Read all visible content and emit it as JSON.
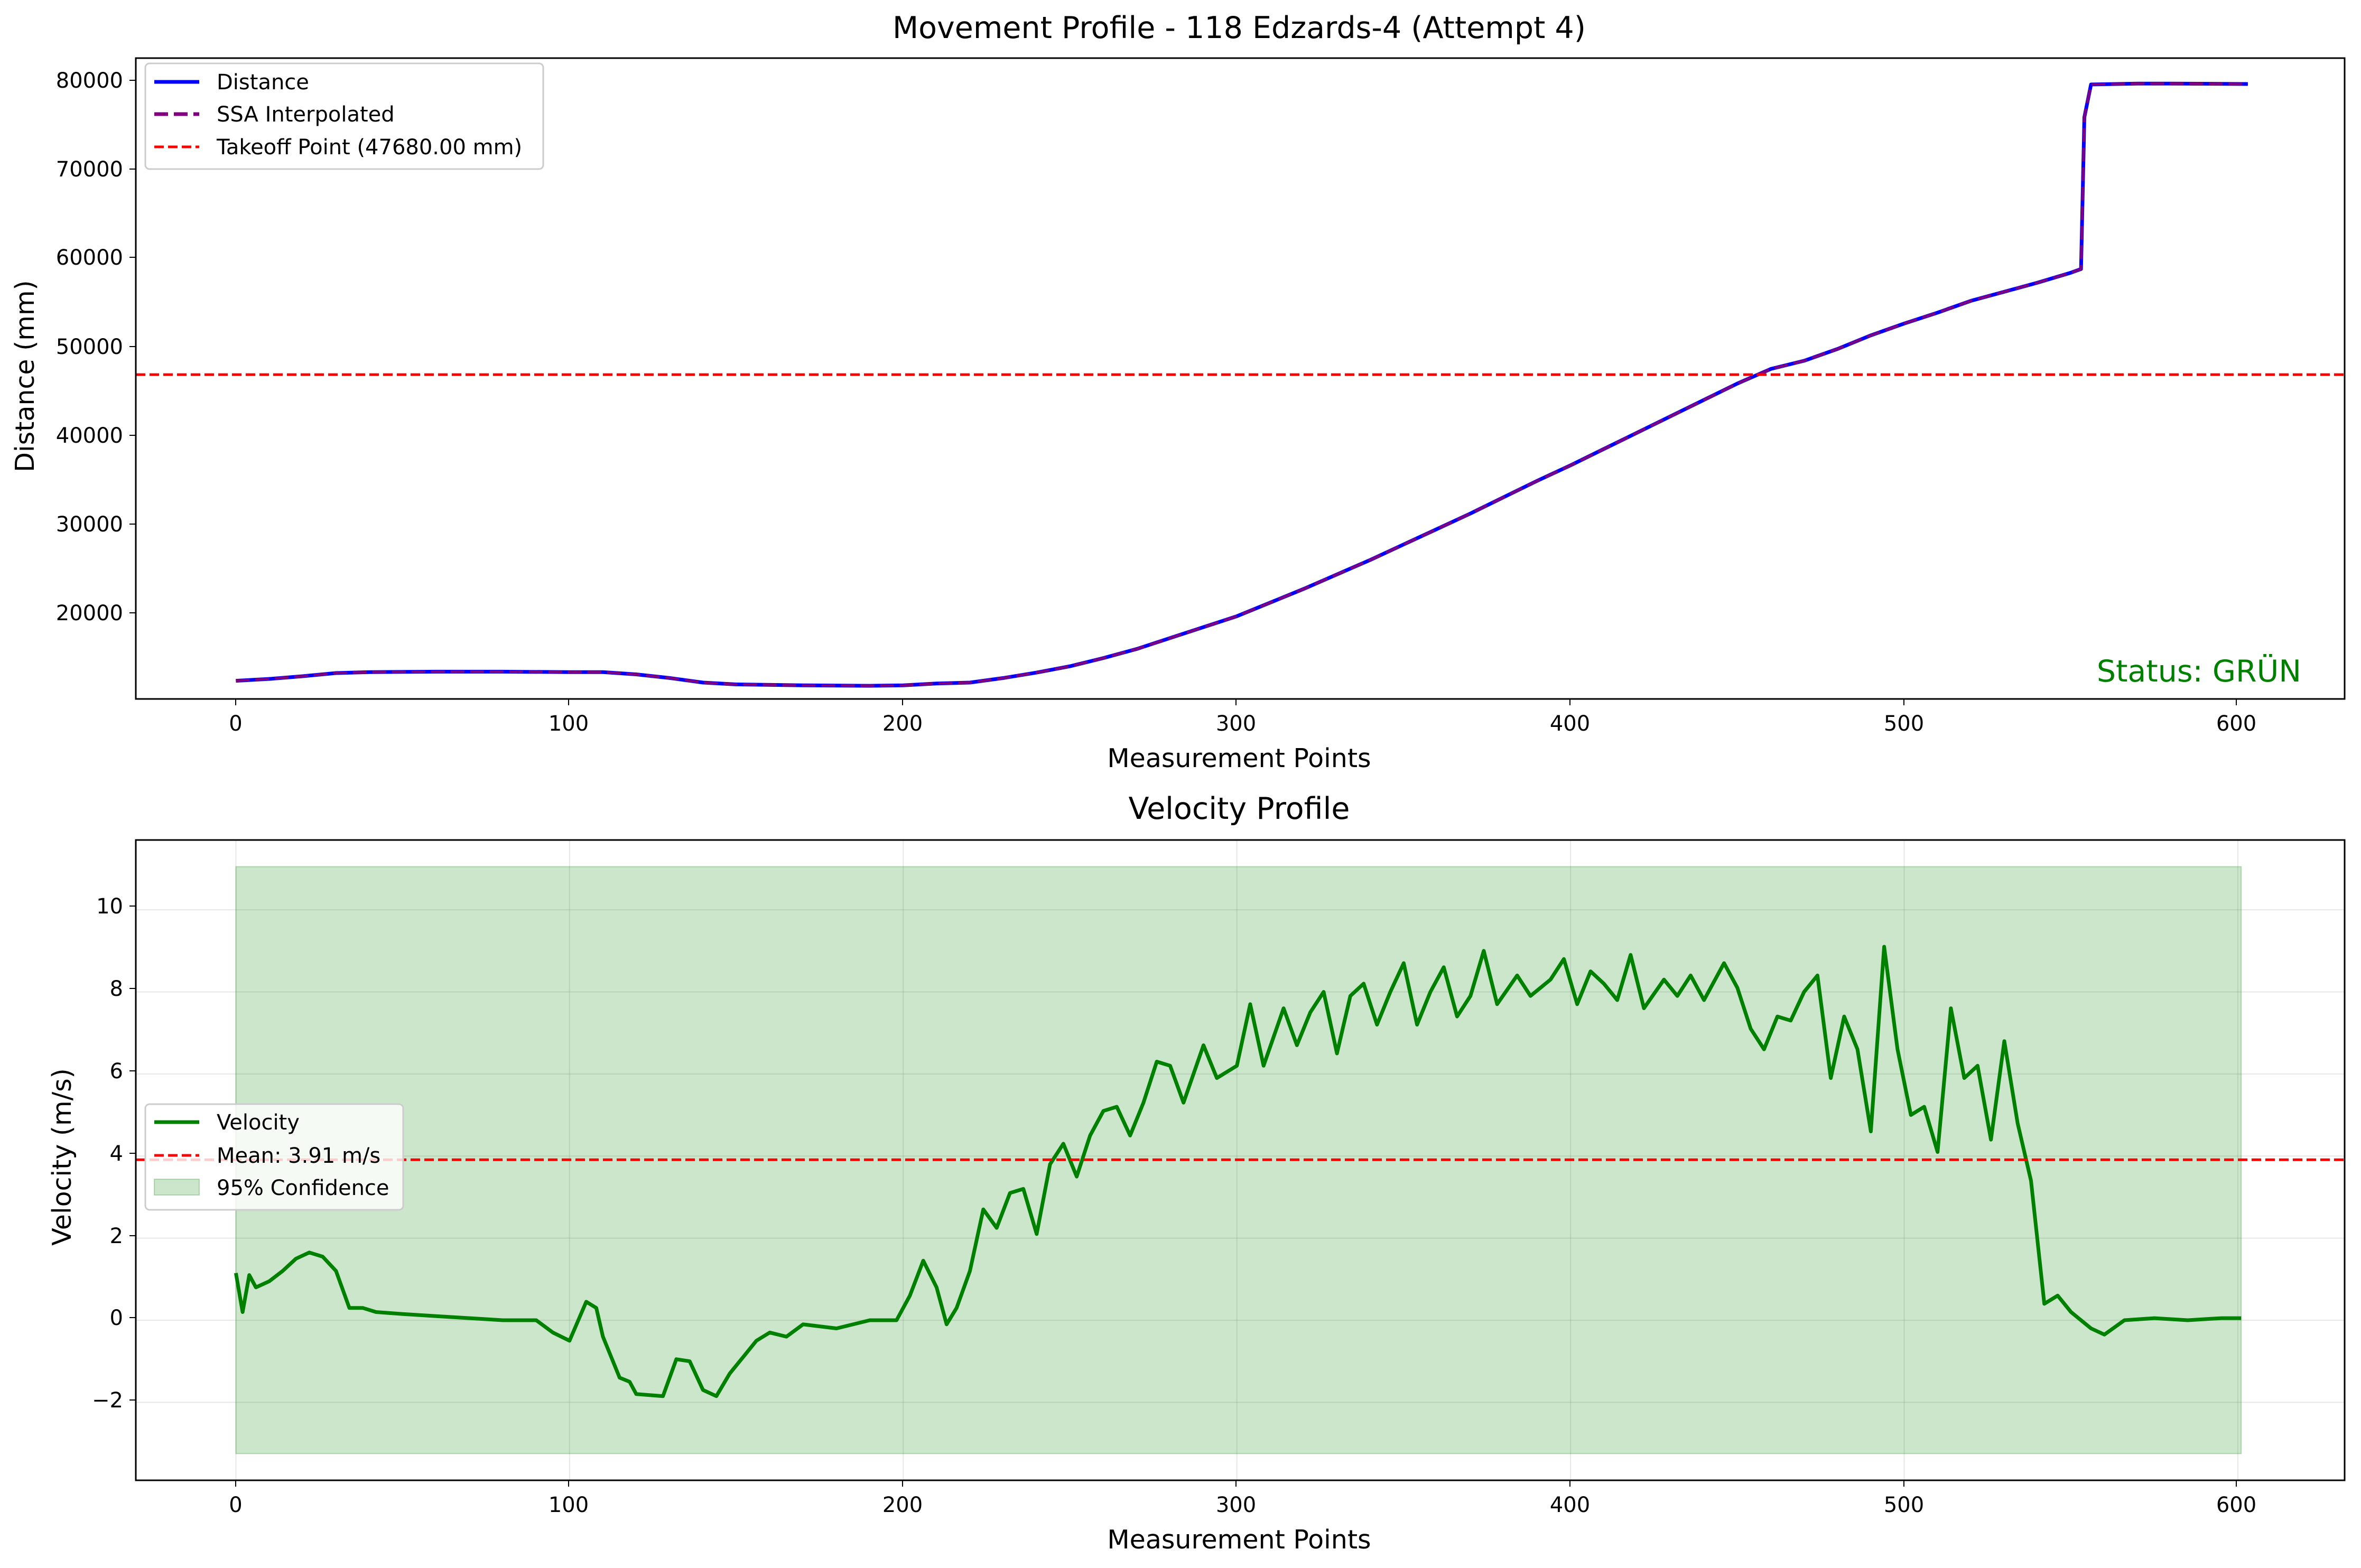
{
  "figure": {
    "colors": {
      "distance": "#0000ff",
      "ssa": "#800080",
      "takeoff": "#ff0000",
      "velocity": "#008000",
      "mean": "#ff0000",
      "confidence": "#008000"
    }
  },
  "chart_data": [
    {
      "type": "line",
      "title": "Movement Profile - 118 Edzards-4 (Attempt 4)",
      "xlabel": "Measurement Points",
      "ylabel": "Distance (mm)",
      "xlim": [
        -30,
        632
      ],
      "ylim": [
        12000,
        82500
      ],
      "xticks": [
        0,
        100,
        200,
        300,
        400,
        500,
        600
      ],
      "yticks": [
        20000,
        30000,
        40000,
        50000,
        60000,
        70000,
        80000
      ],
      "x_tick_labels": [
        "0",
        "100",
        "200",
        "300",
        "400",
        "500",
        "600"
      ],
      "y_tick_labels": [
        "20000",
        "30000",
        "40000",
        "50000",
        "60000",
        "70000",
        "80000"
      ],
      "grid": false,
      "legend_position": "upper-left",
      "series": [
        {
          "name": "Distance",
          "style": "solid",
          "points": [
            [
              0,
              14000
            ],
            [
              10,
              14200
            ],
            [
              20,
              14500
            ],
            [
              30,
              14850
            ],
            [
              40,
              14950
            ],
            [
              60,
              15000
            ],
            [
              80,
              15000
            ],
            [
              100,
              14950
            ],
            [
              110,
              14950
            ],
            [
              120,
              14700
            ],
            [
              130,
              14300
            ],
            [
              140,
              13800
            ],
            [
              150,
              13600
            ],
            [
              170,
              13500
            ],
            [
              190,
              13450
            ],
            [
              200,
              13500
            ],
            [
              210,
              13700
            ],
            [
              220,
              13800
            ],
            [
              230,
              14300
            ],
            [
              240,
              14900
            ],
            [
              250,
              15600
            ],
            [
              260,
              16500
            ],
            [
              270,
              17500
            ],
            [
              280,
              18700
            ],
            [
              290,
              19900
            ],
            [
              300,
              21100
            ],
            [
              310,
              22600
            ],
            [
              320,
              24100
            ],
            [
              330,
              25700
            ],
            [
              340,
              27300
            ],
            [
              350,
              29000
            ],
            [
              360,
              30700
            ],
            [
              370,
              32400
            ],
            [
              380,
              34200
            ],
            [
              390,
              36000
            ],
            [
              400,
              37700
            ],
            [
              410,
              39500
            ],
            [
              420,
              41300
            ],
            [
              430,
              43100
            ],
            [
              440,
              44900
            ],
            [
              450,
              46700
            ],
            [
              460,
              48300
            ],
            [
              470,
              49200
            ],
            [
              480,
              50500
            ],
            [
              490,
              52000
            ],
            [
              500,
              53300
            ],
            [
              510,
              54500
            ],
            [
              520,
              55800
            ],
            [
              530,
              56800
            ],
            [
              540,
              57800
            ],
            [
              550,
              58900
            ],
            [
              553,
              59300
            ],
            [
              554,
              76000
            ],
            [
              556,
              79600
            ],
            [
              570,
              79700
            ],
            [
              580,
              79700
            ],
            [
              603,
              79650
            ]
          ]
        },
        {
          "name": "SSA Interpolated",
          "style": "dashed",
          "same_as": "Distance"
        },
        {
          "name": "Takeoff Point (47680.00 mm)",
          "style": "dashed",
          "type": "hline",
          "y": 47680
        }
      ],
      "annotations": [
        {
          "text": "Status: GRÜN",
          "position": "lower-right",
          "color": "#008000"
        }
      ]
    },
    {
      "type": "line",
      "title": "Velocity Profile",
      "xlabel": "Measurement Points",
      "ylabel": "Velocity (m/s)",
      "xlim": [
        -30,
        632
      ],
      "ylim": [
        -3.9,
        11.7
      ],
      "xticks": [
        0,
        100,
        200,
        300,
        400,
        500,
        600
      ],
      "yticks": [
        -2,
        0,
        2,
        4,
        6,
        8,
        10
      ],
      "x_tick_labels": [
        "0",
        "100",
        "200",
        "300",
        "400",
        "500",
        "600"
      ],
      "y_tick_labels": [
        "−2",
        "0",
        "2",
        "4",
        "6",
        "8",
        "10"
      ],
      "grid": true,
      "legend_position": "center-left",
      "series": [
        {
          "name": "Velocity",
          "style": "solid",
          "points": [
            [
              0,
              1.15
            ],
            [
              2,
              0.2
            ],
            [
              4,
              1.1
            ],
            [
              6,
              0.8
            ],
            [
              10,
              0.95
            ],
            [
              14,
              1.2
            ],
            [
              18,
              1.5
            ],
            [
              22,
              1.65
            ],
            [
              26,
              1.55
            ],
            [
              30,
              1.2
            ],
            [
              34,
              0.3
            ],
            [
              38,
              0.3
            ],
            [
              42,
              0.2
            ],
            [
              50,
              0.15
            ],
            [
              60,
              0.1
            ],
            [
              70,
              0.05
            ],
            [
              80,
              0.0
            ],
            [
              90,
              0.0
            ],
            [
              95,
              -0.3
            ],
            [
              100,
              -0.5
            ],
            [
              105,
              0.45
            ],
            [
              108,
              0.3
            ],
            [
              110,
              -0.4
            ],
            [
              115,
              -1.4
            ],
            [
              118,
              -1.5
            ],
            [
              120,
              -1.8
            ],
            [
              128,
              -1.85
            ],
            [
              132,
              -0.95
            ],
            [
              136,
              -1.0
            ],
            [
              140,
              -1.7
            ],
            [
              144,
              -1.85
            ],
            [
              148,
              -1.3
            ],
            [
              152,
              -0.9
            ],
            [
              156,
              -0.5
            ],
            [
              160,
              -0.3
            ],
            [
              165,
              -0.4
            ],
            [
              170,
              -0.1
            ],
            [
              180,
              -0.2
            ],
            [
              190,
              0.0
            ],
            [
              198,
              0.0
            ],
            [
              202,
              0.6
            ],
            [
              206,
              1.45
            ],
            [
              210,
              0.8
            ],
            [
              213,
              -0.1
            ],
            [
              216,
              0.3
            ],
            [
              220,
              1.2
            ],
            [
              224,
              2.7
            ],
            [
              228,
              2.25
            ],
            [
              232,
              3.1
            ],
            [
              236,
              3.2
            ],
            [
              240,
              2.1
            ],
            [
              244,
              3.8
            ],
            [
              248,
              4.3
            ],
            [
              252,
              3.5
            ],
            [
              256,
              4.5
            ],
            [
              260,
              5.1
            ],
            [
              264,
              5.2
            ],
            [
              268,
              4.5
            ],
            [
              272,
              5.3
            ],
            [
              276,
              6.3
            ],
            [
              280,
              6.2
            ],
            [
              284,
              5.3
            ],
            [
              290,
              6.7
            ],
            [
              294,
              5.9
            ],
            [
              300,
              6.2
            ],
            [
              304,
              7.7
            ],
            [
              308,
              6.2
            ],
            [
              314,
              7.6
            ],
            [
              318,
              6.7
            ],
            [
              322,
              7.5
            ],
            [
              326,
              8.0
            ],
            [
              330,
              6.5
            ],
            [
              334,
              7.9
            ],
            [
              338,
              8.2
            ],
            [
              342,
              7.2
            ],
            [
              346,
              8.0
            ],
            [
              350,
              8.7
            ],
            [
              354,
              7.2
            ],
            [
              358,
              8.0
            ],
            [
              362,
              8.6
            ],
            [
              366,
              7.4
            ],
            [
              370,
              7.9
            ],
            [
              374,
              9.0
            ],
            [
              378,
              7.7
            ],
            [
              384,
              8.4
            ],
            [
              388,
              7.9
            ],
            [
              394,
              8.3
            ],
            [
              398,
              8.8
            ],
            [
              402,
              7.7
            ],
            [
              406,
              8.5
            ],
            [
              410,
              8.2
            ],
            [
              414,
              7.8
            ],
            [
              418,
              8.9
            ],
            [
              422,
              7.6
            ],
            [
              428,
              8.3
            ],
            [
              432,
              7.9
            ],
            [
              436,
              8.4
            ],
            [
              440,
              7.8
            ],
            [
              446,
              8.7
            ],
            [
              450,
              8.1
            ],
            [
              454,
              7.1
            ],
            [
              458,
              6.6
            ],
            [
              462,
              7.4
            ],
            [
              466,
              7.3
            ],
            [
              470,
              8.0
            ],
            [
              474,
              8.4
            ],
            [
              478,
              5.9
            ],
            [
              482,
              7.4
            ],
            [
              486,
              6.6
            ],
            [
              490,
              4.6
            ],
            [
              494,
              9.1
            ],
            [
              498,
              6.6
            ],
            [
              502,
              5.0
            ],
            [
              506,
              5.2
            ],
            [
              510,
              4.1
            ],
            [
              514,
              7.6
            ],
            [
              518,
              5.9
            ],
            [
              522,
              6.2
            ],
            [
              526,
              4.4
            ],
            [
              530,
              6.8
            ],
            [
              534,
              4.8
            ],
            [
              538,
              3.4
            ],
            [
              542,
              0.4
            ],
            [
              546,
              0.6
            ],
            [
              550,
              0.2
            ],
            [
              556,
              -0.2
            ],
            [
              560,
              -0.35
            ],
            [
              566,
              0.0
            ],
            [
              575,
              0.05
            ],
            [
              585,
              0.0
            ],
            [
              595,
              0.05
            ],
            [
              601,
              0.05
            ]
          ]
        },
        {
          "name": "Mean: 3.91 m/s",
          "style": "dashed",
          "type": "hline",
          "y": 3.91
        },
        {
          "name": "95% Confidence",
          "type": "band",
          "x": [
            0,
            601
          ],
          "y": [
            -3.25,
            11.05
          ]
        }
      ]
    }
  ]
}
